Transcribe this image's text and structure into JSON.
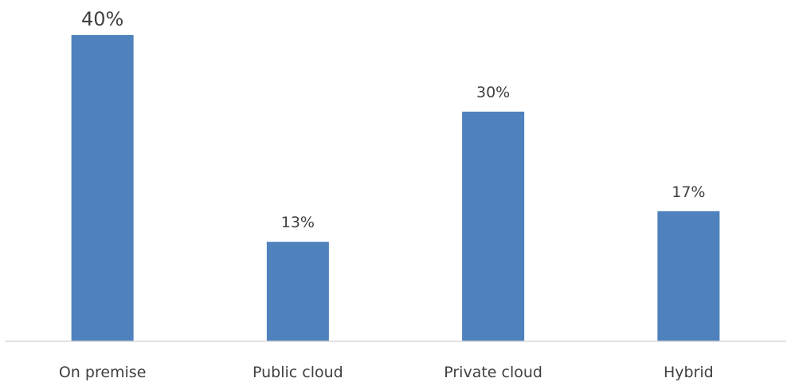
{
  "chart_data": {
    "type": "bar",
    "categories": [
      "On premise",
      "Public cloud",
      "Private cloud",
      "Hybrid"
    ],
    "values": [
      40,
      13,
      30,
      17
    ],
    "data_labels": [
      "40%",
      "13%",
      "30%",
      "17%"
    ],
    "title": "",
    "xlabel": "",
    "ylabel": "",
    "ylim": [
      0,
      45
    ],
    "grid": false,
    "legend": "none",
    "bar_color": "#4f81bd",
    "axis_color": "#d9d9d9"
  }
}
